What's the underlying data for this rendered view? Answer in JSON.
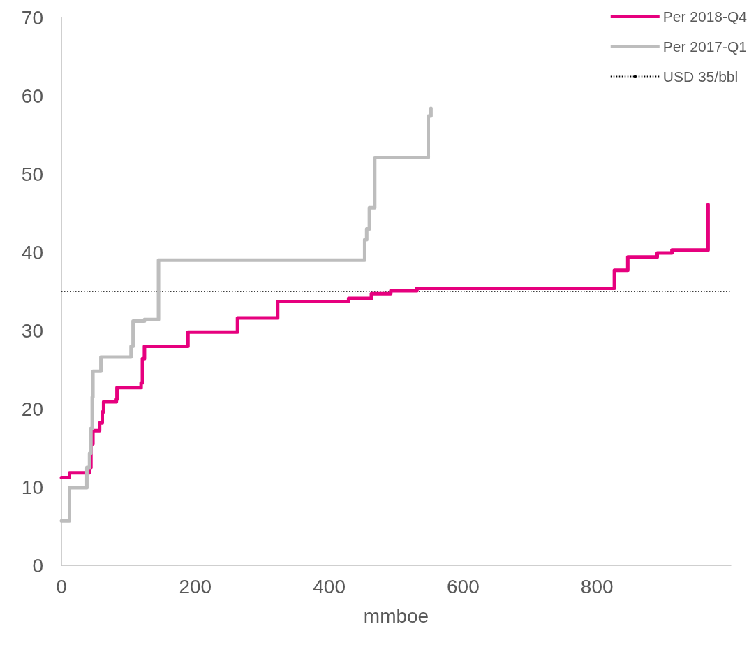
{
  "chart_data": {
    "type": "step",
    "xlabel": "mmboe",
    "xlim": [
      0,
      1000
    ],
    "xticks": [
      0,
      200,
      400,
      600,
      800
    ],
    "ylim": [
      0,
      70
    ],
    "yticks": [
      0,
      10,
      20,
      30,
      40,
      50,
      60,
      70
    ],
    "grid": false,
    "legend": "top right",
    "line_style": "solid",
    "marker": "none",
    "series": [
      {
        "name": "Per 2018-Q4",
        "color": "#e6007e",
        "x": [
          0,
          12,
          42,
          44,
          47,
          48,
          57,
          61,
          63,
          82,
          83,
          119,
          121,
          124,
          189,
          263,
          323,
          429,
          463,
          492,
          531,
          826,
          846,
          890,
          912,
          966,
          966
        ],
        "values": [
          11.2,
          11.8,
          12.5,
          15.5,
          17.2,
          17.2,
          18.2,
          19.6,
          20.9,
          21.2,
          22.7,
          23.3,
          26.4,
          28.0,
          29.8,
          31.6,
          33.7,
          34.1,
          34.7,
          35.1,
          35.4,
          37.7,
          39.4,
          39.9,
          40.3,
          42.0,
          46.1
        ]
      },
      {
        "name": "Per 2017-Q1",
        "color": "#bdbdbd",
        "x": [
          0,
          12,
          38,
          42,
          44,
          46,
          47,
          59,
          104,
          107,
          124,
          145,
          453,
          456,
          460,
          468,
          548,
          552,
          552
        ],
        "values": [
          5.7,
          9.9,
          12.5,
          14.3,
          17.5,
          21.5,
          24.8,
          26.6,
          28.0,
          31.2,
          31.4,
          39.0,
          41.6,
          43.0,
          45.7,
          52.1,
          57.4,
          58.4,
          58.4
        ]
      }
    ],
    "ref_lines": [
      {
        "axis": "y",
        "value": 35,
        "label": "USD 35/bbl",
        "color": "#000000",
        "line_style": "dotted"
      }
    ]
  }
}
